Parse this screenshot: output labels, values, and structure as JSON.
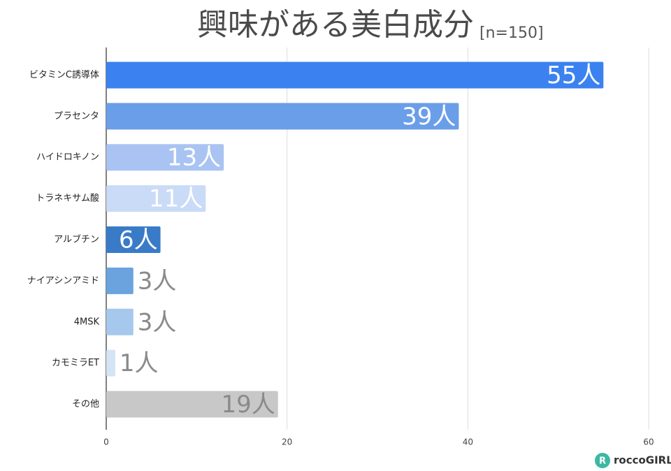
{
  "chart_data": {
    "type": "barh",
    "title": "興味がある美白成分",
    "subtitle": "[n=150]",
    "categories": [
      "ビタミンC誘導体",
      "プラセンタ",
      "ハイドロキノン",
      "トラネキサム酸",
      "アルブチン",
      "ナイアシンアミド",
      "4MSK",
      "カモミラET",
      "その他"
    ],
    "values": [
      55,
      39,
      13,
      11,
      6,
      3,
      3,
      1,
      19
    ],
    "value_labels": [
      "55人",
      "39人",
      "13人",
      "11人",
      "6人",
      "3人",
      "3人",
      "1人",
      "19人"
    ],
    "colors": [
      "#3b82f0",
      "#6b9ee8",
      "#a9c4f2",
      "#c9dbf7",
      "#3a7bc8",
      "#6aa3de",
      "#a5c8ec",
      "#d4e4f5",
      "#c8c8c8"
    ],
    "label_colors": [
      "#ffffff",
      "#ffffff",
      "#ffffff",
      "#ffffff",
      "#ffffff",
      "#8a8a8a",
      "#8a8a8a",
      "#8a8a8a",
      "#8a8a8a"
    ],
    "xlim": [
      0,
      60
    ],
    "xticks": [
      0,
      20,
      40,
      60
    ],
    "grid": true
  },
  "logo": "roccoGIRL"
}
